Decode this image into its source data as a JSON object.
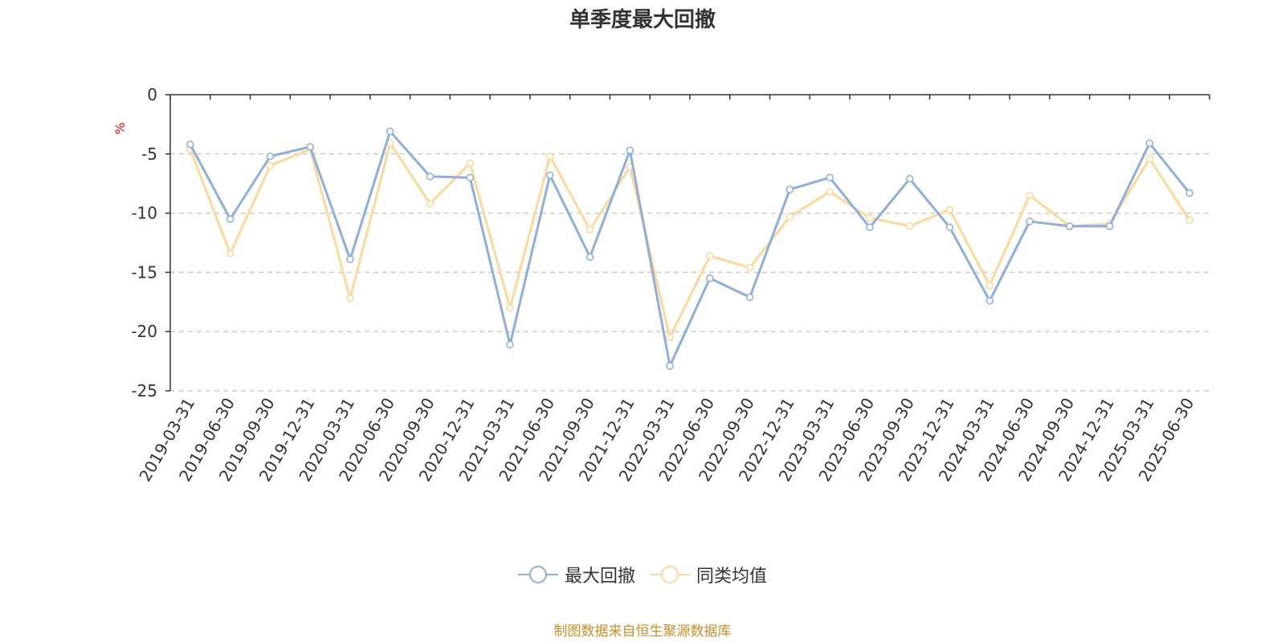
{
  "title": "单季度最大回撤",
  "unit_label": "%",
  "source_note": "制图数据来自恒生聚源数据库",
  "colors": {
    "series1": "#8eaedb",
    "series2": "#fbd99b",
    "grid": "#cccccc",
    "axis": "#333333"
  },
  "legend": {
    "item1": "最大回撤",
    "item2": "同类均值"
  },
  "chart_data": {
    "type": "line",
    "title": "单季度最大回撤",
    "ylabel": "%",
    "ylim": [
      -25,
      0
    ],
    "yticks": [
      0,
      -5,
      -10,
      -15,
      -20,
      -25
    ],
    "grid": true,
    "legend_position": "bottom",
    "categories": [
      "2019-03-31",
      "2019-06-30",
      "2019-09-30",
      "2019-12-31",
      "2020-03-31",
      "2020-06-30",
      "2020-09-30",
      "2020-12-31",
      "2021-03-31",
      "2021-06-30",
      "2021-09-30",
      "2021-12-31",
      "2022-03-31",
      "2022-06-30",
      "2022-09-30",
      "2022-12-31",
      "2023-03-31",
      "2023-06-30",
      "2023-09-30",
      "2023-12-31",
      "2024-03-31",
      "2024-06-30",
      "2024-09-30",
      "2024-12-31",
      "2025-03-31",
      "2025-06-30"
    ],
    "series": [
      {
        "name": "最大回撤",
        "values": [
          -4.2,
          -10.5,
          -5.2,
          -4.4,
          -13.9,
          -3.1,
          -6.9,
          -7.0,
          -21.1,
          -6.8,
          -13.7,
          -4.7,
          -22.9,
          -15.5,
          -17.1,
          -8.0,
          -7.0,
          -11.2,
          -7.1,
          -11.2,
          -17.4,
          -10.7,
          -11.1,
          -11.1,
          -4.1,
          -8.3
        ]
      },
      {
        "name": "同类均值",
        "values": [
          -4.6,
          -13.4,
          -6.0,
          -4.6,
          -17.2,
          -4.1,
          -9.2,
          -5.8,
          -18.0,
          -5.2,
          -11.4,
          -6.1,
          -20.5,
          -13.6,
          -14.6,
          -10.3,
          -8.2,
          -10.4,
          -11.1,
          -9.7,
          -16.1,
          -8.5,
          -11.1,
          -10.9,
          -5.4,
          -10.6
        ]
      }
    ]
  }
}
